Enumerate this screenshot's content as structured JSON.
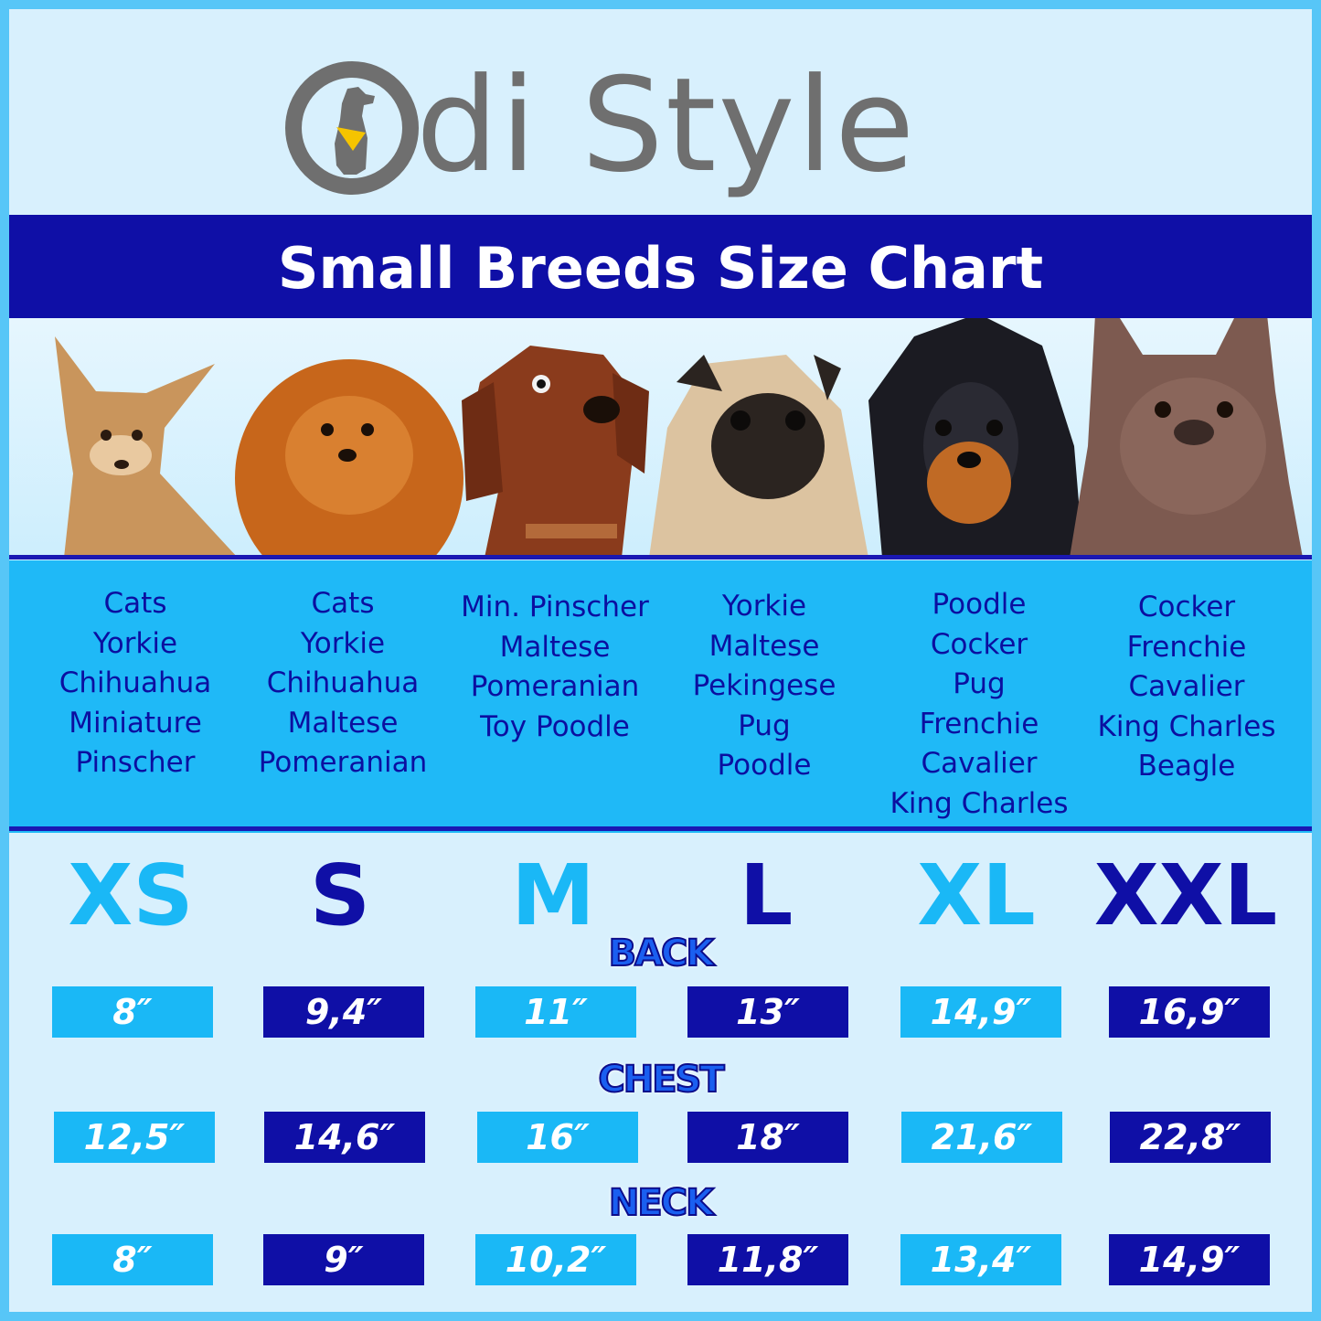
{
  "brand": {
    "name": "di Style",
    "logo_letter": "O",
    "logo_colors": {
      "ring": "#6f6f6f",
      "bandana": "#f5c400"
    }
  },
  "title": "Small Breeds Size Chart",
  "colors": {
    "dark_blue": "#0f0fa6",
    "light_blue": "#1ab8f6",
    "background": "#d8f0fd",
    "border": "#57c6f7"
  },
  "dog_photos": [
    "chihuahua",
    "pomeranian",
    "dachshund",
    "pug",
    "cavalier-king-charles",
    "french-bulldog"
  ],
  "breed_columns": [
    [
      "Cats",
      "Yorkie",
      "Chihuahua",
      "Miniature",
      "Pinscher"
    ],
    [
      "Cats",
      "Yorkie",
      "Chihuahua",
      "Maltese",
      "Pomeranian"
    ],
    [
      "Min. Pinscher",
      "Maltese",
      "Pomeranian",
      "Toy Poodle"
    ],
    [
      "Yorkie",
      "Maltese",
      "Pekingese",
      "Pug",
      "Poodle"
    ],
    [
      "Poodle",
      "Cocker",
      "Pug",
      "Frenchie",
      "Cavalier",
      "King Charles"
    ],
    [
      "Cocker",
      "Frenchie",
      "Cavalier",
      "King Charles",
      "Beagle"
    ]
  ],
  "sizes": [
    "XS",
    "S",
    "M",
    "L",
    "XL",
    "XXL"
  ],
  "measurements": [
    {
      "name": "BACK",
      "values": [
        "8″",
        "9,4″",
        "11″",
        "13″",
        "14,9″",
        "16,9″"
      ]
    },
    {
      "name": "CHEST",
      "values": [
        "12,5″",
        "14,6″",
        "16″",
        "18″",
        "21,6″",
        "22,8″"
      ]
    },
    {
      "name": "NECK",
      "values": [
        "8″",
        "9″",
        "10,2″",
        "11,8″",
        "13,4″",
        "14,9″"
      ]
    }
  ]
}
